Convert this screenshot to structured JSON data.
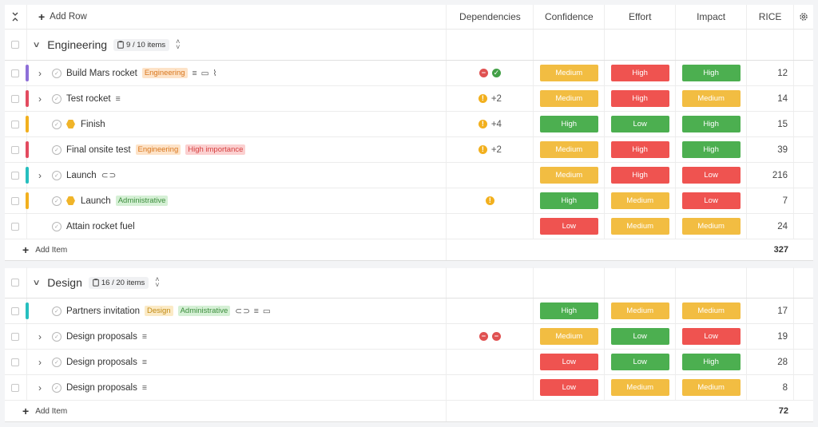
{
  "toolbar": {
    "add_row_label": "Add Row"
  },
  "columns": {
    "dependencies": "Dependencies",
    "confidence": "Confidence",
    "effort": "Effort",
    "impact": "Impact",
    "rice": "RICE"
  },
  "groups": [
    {
      "name": "Engineering",
      "count": "9 / 10 items",
      "add_item_label": "Add Item",
      "total": "327",
      "items": [
        {
          "title": "Build Mars rocket",
          "bar_color": "#8e6fd8",
          "expandable": true,
          "milestone": false,
          "tags": [
            {
              "text": "Engineering",
              "kind": "eng"
            }
          ],
          "icons": "≡ ▭ ⌇",
          "deps": [
            "block",
            "ok"
          ],
          "dep_more": "",
          "confidence": "Medium",
          "effort": "High",
          "impact": "High",
          "rice": "12",
          "conf_c": "Medium",
          "eff_c": "High-r",
          "imp_c": "High-g"
        },
        {
          "title": "Test rocket",
          "bar_color": "#e34b5f",
          "expandable": true,
          "milestone": false,
          "tags": [],
          "icons": "≡",
          "deps": [
            "warn"
          ],
          "dep_more": "+2",
          "confidence": "Medium",
          "effort": "High",
          "impact": "Medium",
          "rice": "14",
          "conf_c": "Medium",
          "eff_c": "High-r",
          "imp_c": "Medium"
        },
        {
          "title": "Finish",
          "bar_color": "#f2b01e",
          "expandable": false,
          "milestone": true,
          "tags": [],
          "icons": "",
          "deps": [
            "warn"
          ],
          "dep_more": "+4",
          "confidence": "High",
          "effort": "Low",
          "impact": "High",
          "rice": "15",
          "conf_c": "High-g",
          "eff_c": "Low-g",
          "imp_c": "High-g"
        },
        {
          "title": "Final onsite test",
          "bar_color": "#e34b5f",
          "expandable": false,
          "milestone": false,
          "tags": [
            {
              "text": "Engineering",
              "kind": "eng"
            },
            {
              "text": "High importance",
              "kind": "high"
            }
          ],
          "icons": "",
          "deps": [
            "warn"
          ],
          "dep_more": "+2",
          "confidence": "Medium",
          "effort": "High",
          "impact": "High",
          "rice": "39",
          "conf_c": "Medium",
          "eff_c": "High-r",
          "imp_c": "High-g"
        },
        {
          "title": "Launch",
          "bar_color": "#26bfbf",
          "expandable": true,
          "milestone": false,
          "tags": [],
          "icons": "⊂⊃",
          "deps": [],
          "dep_more": "",
          "confidence": "Medium",
          "effort": "High",
          "impact": "Low",
          "rice": "216",
          "conf_c": "Medium",
          "eff_c": "High-r",
          "imp_c": "Low-r"
        },
        {
          "title": "Launch",
          "bar_color": "#f2b01e",
          "expandable": false,
          "milestone": true,
          "tags": [
            {
              "text": "Administrative",
              "kind": "adm"
            }
          ],
          "icons": "",
          "deps": [
            "warn"
          ],
          "dep_more": "",
          "confidence": "High",
          "effort": "Medium",
          "impact": "Low",
          "rice": "7",
          "conf_c": "High-g",
          "eff_c": "Medium",
          "imp_c": "Low-r"
        },
        {
          "title": "Attain rocket fuel",
          "bar_color": "",
          "expandable": false,
          "milestone": false,
          "tags": [],
          "icons": "",
          "deps": [],
          "dep_more": "",
          "confidence": "Low",
          "effort": "Medium",
          "impact": "Medium",
          "rice": "24",
          "conf_c": "Low-r",
          "eff_c": "Medium",
          "imp_c": "Medium"
        }
      ]
    },
    {
      "name": "Design",
      "count": "16 / 20 items",
      "add_item_label": "Add Item",
      "total": "72",
      "items": [
        {
          "title": "Partners invitation",
          "bar_color": "#26bfbf",
          "expandable": false,
          "milestone": false,
          "tags": [
            {
              "text": "Design",
              "kind": "des"
            },
            {
              "text": "Administrative",
              "kind": "adm"
            }
          ],
          "icons": "⊂⊃ ≡ ▭",
          "deps": [],
          "dep_more": "",
          "confidence": "High",
          "effort": "Medium",
          "impact": "Medium",
          "rice": "17",
          "conf_c": "High-g",
          "eff_c": "Medium",
          "imp_c": "Medium"
        },
        {
          "title": "Design proposals",
          "bar_color": "",
          "expandable": true,
          "milestone": false,
          "tags": [],
          "icons": "≡",
          "deps": [
            "block",
            "block"
          ],
          "dep_more": "",
          "confidence": "Medium",
          "effort": "Low",
          "impact": "Low",
          "rice": "19",
          "conf_c": "Medium",
          "eff_c": "Low-g",
          "imp_c": "Low-r"
        },
        {
          "title": "Design proposals",
          "bar_color": "",
          "expandable": true,
          "milestone": false,
          "tags": [],
          "icons": "≡",
          "deps": [],
          "dep_more": "",
          "confidence": "Low",
          "effort": "Low",
          "impact": "High",
          "rice": "28",
          "conf_c": "Low-r",
          "eff_c": "Low-g",
          "imp_c": "High-g"
        },
        {
          "title": "Design proposals",
          "bar_color": "",
          "expandable": true,
          "milestone": false,
          "tags": [],
          "icons": "≡",
          "deps": [],
          "dep_more": "",
          "confidence": "Low",
          "effort": "Medium",
          "impact": "Medium",
          "rice": "8",
          "conf_c": "Low-r",
          "eff_c": "Medium",
          "imp_c": "Medium"
        }
      ]
    }
  ]
}
